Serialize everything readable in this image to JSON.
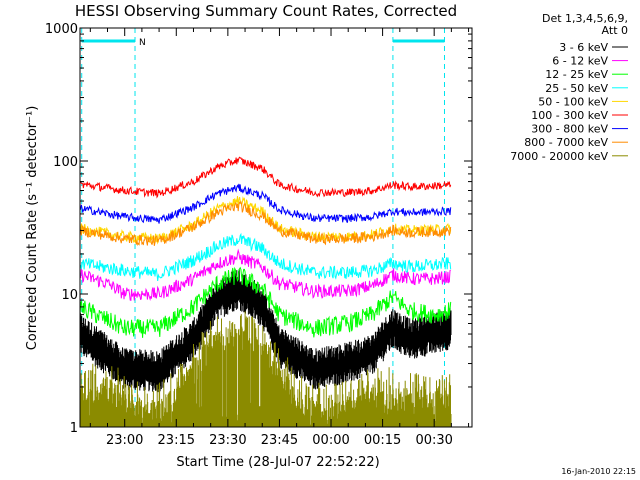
{
  "chart_data": {
    "type": "line",
    "title": "HESSI Observing Summary Count Rates, Corrected",
    "xlabel": "Start Time (28-Jul-07 22:52:22)",
    "ylabel": "Corrected Count Rate (s⁻¹ detector⁻¹)",
    "yscale": "log",
    "ylim": [
      1,
      1000
    ],
    "y_ticks": [
      1,
      10,
      100,
      1000
    ],
    "y_tick_labels": [
      "1",
      "10",
      "100",
      "1000"
    ],
    "x_range_minutes": [
      -13,
      101
    ],
    "x_ticks": [
      {
        "label": "23:00",
        "minutes": 0
      },
      {
        "label": "23:15",
        "minutes": 15
      },
      {
        "label": "23:30",
        "minutes": 30
      },
      {
        "label": "23:45",
        "minutes": 45
      },
      {
        "label": "00:00",
        "minutes": 60
      },
      {
        "label": "00:15",
        "minutes": 75
      },
      {
        "label": "00:30",
        "minutes": 90
      }
    ],
    "legend": {
      "placement": "right",
      "header": [
        "Det 1,3,4,5,6,9,",
        "Att 0"
      ]
    },
    "night_markers_minutes": [
      -12.5,
      3,
      78,
      93
    ],
    "night_label": "N",
    "night_color": "#00e5ee",
    "series": [
      {
        "name": "3 - 6 keV",
        "color": "#000000",
        "x": [
          -13,
          0,
          10,
          20,
          27,
          33,
          40,
          45,
          55,
          65,
          72,
          78,
          83,
          90,
          95
        ],
        "y": [
          5,
          2.7,
          2.6,
          4.5,
          9,
          11,
          8,
          4,
          2.7,
          3,
          3.5,
          5.5,
          4.5,
          5,
          5.5
        ]
      },
      {
        "name": "6 - 12 keV",
        "color": "#ff00ff",
        "x": [
          -13,
          -5,
          0,
          10,
          20,
          27,
          33,
          40,
          45,
          55,
          65,
          72,
          78,
          83,
          90,
          95
        ],
        "y": [
          14,
          12,
          10,
          10,
          13,
          17,
          19,
          16,
          12,
          10.5,
          10.5,
          11.5,
          14,
          13,
          13,
          13.5
        ]
      },
      {
        "name": "12 - 25 keV",
        "color": "#00ff00",
        "x": [
          -13,
          0,
          10,
          20,
          27,
          33,
          40,
          45,
          55,
          65,
          72,
          78,
          83,
          90,
          95
        ],
        "y": [
          8,
          5.5,
          5.5,
          8,
          12,
          14,
          11,
          7,
          5.5,
          6,
          7,
          9.5,
          7.5,
          7,
          7.5
        ]
      },
      {
        "name": "25 - 50 keV",
        "color": "#00ffff",
        "x": [
          -13,
          0,
          10,
          20,
          27,
          33,
          40,
          45,
          55,
          65,
          72,
          78,
          83,
          90,
          95
        ],
        "y": [
          17,
          15,
          14,
          18,
          23,
          26,
          22,
          17,
          14.5,
          14.5,
          15,
          17,
          16,
          16.5,
          17
        ]
      },
      {
        "name": "50 - 100 keV",
        "color": "#ffd700",
        "x": [
          -13,
          0,
          10,
          20,
          27,
          33,
          40,
          45,
          55,
          65,
          72,
          78,
          83,
          90,
          95
        ],
        "y": [
          31,
          27,
          26,
          33,
          44,
          50,
          42,
          31,
          27,
          27,
          28,
          31,
          30,
          30.5,
          31
        ]
      },
      {
        "name": "100 - 300 keV",
        "color": "#ff0000",
        "x": [
          -13,
          0,
          10,
          20,
          27,
          33,
          40,
          45,
          55,
          65,
          72,
          78,
          83,
          90,
          95
        ],
        "y": [
          67,
          60,
          57,
          70,
          90,
          102,
          88,
          66,
          58,
          58,
          60,
          66,
          64,
          65,
          66
        ]
      },
      {
        "name": "300 - 800 keV",
        "color": "#0000ff",
        "x": [
          -13,
          0,
          10,
          20,
          27,
          33,
          40,
          45,
          55,
          65,
          72,
          78,
          83,
          90,
          95
        ],
        "y": [
          44,
          38,
          36,
          45,
          57,
          63,
          55,
          43,
          37,
          37,
          38,
          42,
          41,
          41.5,
          42
        ]
      },
      {
        "name": "800 - 7000 keV",
        "color": "#ff8c00",
        "x": [
          -13,
          0,
          10,
          20,
          27,
          33,
          40,
          45,
          55,
          65,
          72,
          78,
          83,
          90,
          95
        ],
        "y": [
          30,
          26,
          25,
          32,
          41,
          46,
          39,
          30,
          26,
          26,
          27,
          30,
          29,
          29.5,
          30
        ]
      },
      {
        "name": "7000 - 20000 keV",
        "color": "#8b8b00",
        "x": [
          -13,
          -5,
          0,
          5,
          10,
          15,
          20,
          25,
          30,
          35,
          40,
          45,
          50,
          55,
          60,
          65,
          70,
          75,
          80,
          85,
          90,
          95
        ],
        "y": [
          1.3,
          1.5,
          1.2,
          1,
          1,
          1.3,
          2,
          3,
          3.5,
          3.5,
          3,
          2,
          1.3,
          1,
          1,
          1.1,
          1.3,
          1.4,
          1.2,
          1.2,
          1.2,
          1.2
        ]
      }
    ]
  },
  "footer": {
    "timestamp": "16-Jan-2010 22:15"
  }
}
